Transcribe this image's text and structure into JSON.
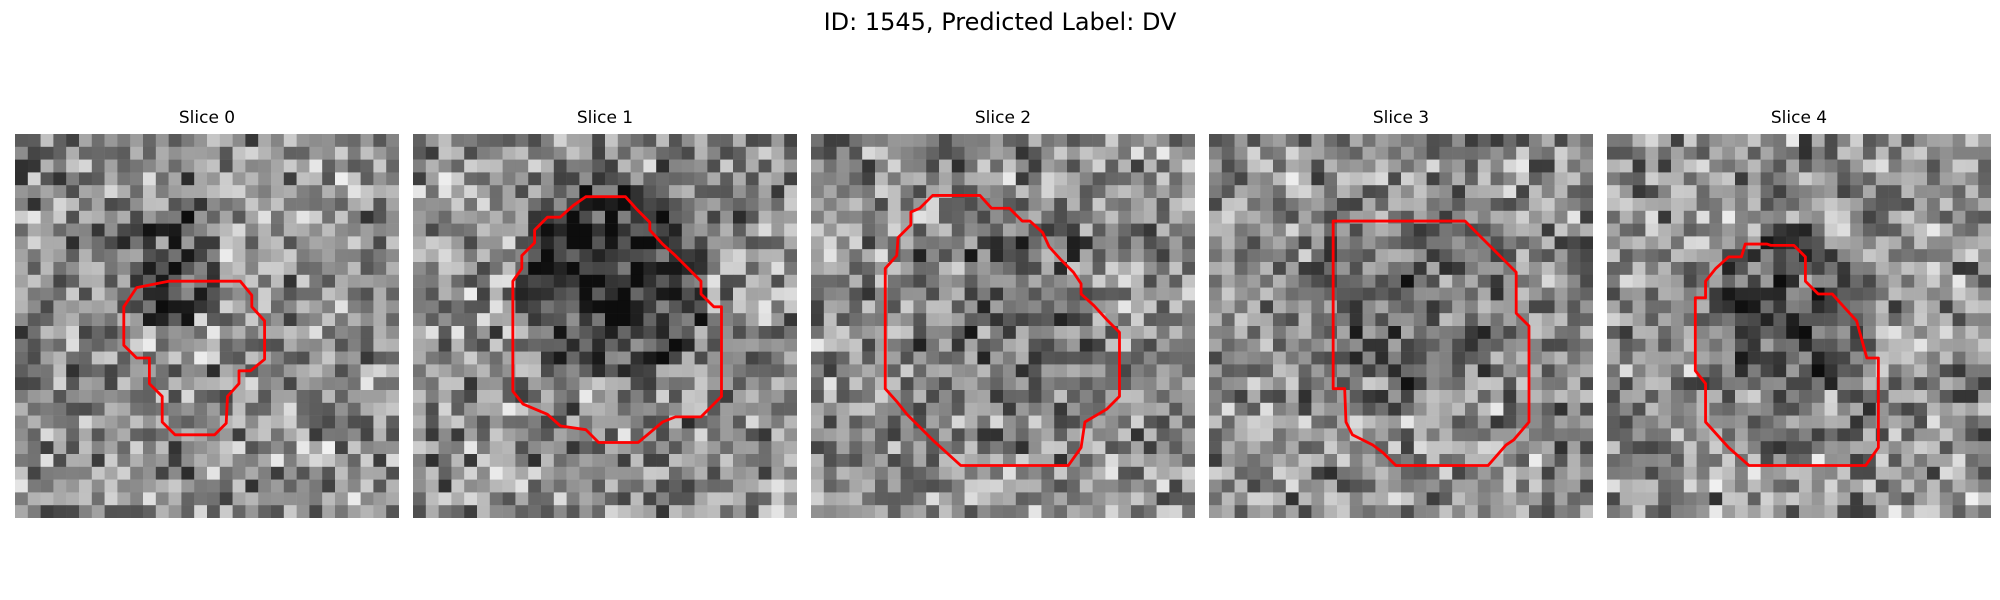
{
  "figure": {
    "title": "ID: 1545, Predicted Label: DV"
  },
  "panels": [
    {
      "title": "Slice 0",
      "seed": 11,
      "blob": {
        "cx": 11.5,
        "cy": 10.5,
        "r": 4.5,
        "dark": 0.3
      },
      "outline_color": "#ff0000"
    },
    {
      "title": "Slice 1",
      "seed": 23,
      "blob": {
        "cx": 15.5,
        "cy": 11.5,
        "r": 8.0,
        "dark": 0.4
      },
      "outline_color": "#ff0000"
    },
    {
      "title": "Slice 2",
      "seed": 37,
      "blob": {
        "cx": 15.0,
        "cy": 13.5,
        "r": 8.5,
        "dark": 0.12
      },
      "outline_color": "#ff0000"
    },
    {
      "title": "Slice 3",
      "seed": 53,
      "blob": {
        "cx": 15.5,
        "cy": 13.5,
        "r": 8.0,
        "dark": 0.15
      },
      "outline_color": "#ff0000"
    },
    {
      "title": "Slice 4",
      "seed": 71,
      "blob": {
        "cx": 14.5,
        "cy": 14.0,
        "r": 7.0,
        "dark": 0.25
      },
      "outline_color": "#ff0000"
    }
  ]
}
